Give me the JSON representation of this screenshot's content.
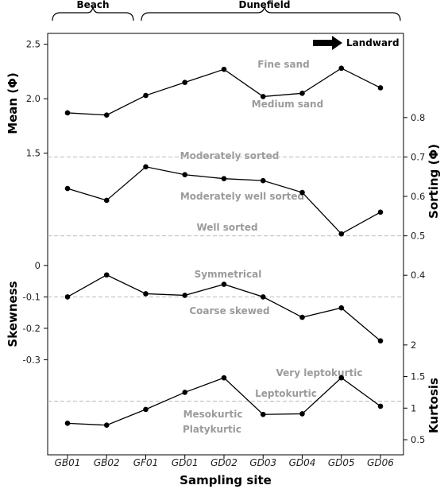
{
  "chart_data": {
    "type": "line",
    "categories": [
      "GB01",
      "GB02",
      "GF01",
      "GD01",
      "GD02",
      "GD03",
      "GD04",
      "GD05",
      "GD06"
    ],
    "xlabel": "Sampling site",
    "top_brackets": [
      {
        "label": "Beach",
        "from": "GB01",
        "to": "GB02"
      },
      {
        "label": "Dunefield",
        "from": "GF01",
        "to": "GD06"
      }
    ],
    "direction_label": "Landward",
    "panels": [
      {
        "id": "mean",
        "ylabel": "Mean (Φ)",
        "axis_side": "left",
        "ylim": [
          1.3,
          2.6
        ],
        "ticks": [
          {
            "v": 1.5,
            "label": "1.5"
          },
          {
            "v": 2.0,
            "label": "2.0"
          },
          {
            "v": 2.5,
            "label": "2.5"
          }
        ],
        "values": [
          1.87,
          1.85,
          2.03,
          2.15,
          2.27,
          2.02,
          2.05,
          2.28,
          2.1
        ],
        "reference_lines": [],
        "zone_labels": [
          {
            "text": "Fine sand"
          },
          {
            "text": "Medium sand"
          }
        ]
      },
      {
        "id": "sorting",
        "ylabel": "Sorting (Φ)",
        "axis_side": "right",
        "ylim": [
          0.35,
          0.85
        ],
        "ticks": [
          {
            "v": 0.4,
            "label": "0.4"
          },
          {
            "v": 0.5,
            "label": "0.5"
          },
          {
            "v": 0.6,
            "label": "0.6"
          },
          {
            "v": 0.7,
            "label": "0.7"
          },
          {
            "v": 0.8,
            "label": "0.8"
          }
        ],
        "values": [
          0.62,
          0.59,
          0.675,
          0.655,
          0.645,
          0.64,
          0.61,
          0.505,
          0.56
        ],
        "reference_lines": [
          0.7,
          0.5
        ],
        "zone_labels": [
          {
            "text": "Moderately sorted"
          },
          {
            "text": "Moderately well sorted"
          },
          {
            "text": "Well sorted"
          }
        ]
      },
      {
        "id": "skewness",
        "ylabel": "Skewness",
        "axis_side": "left",
        "ylim": [
          -0.38,
          0.02
        ],
        "ticks": [
          {
            "v": 0,
            "label": "0"
          },
          {
            "v": -0.1,
            "label": "-0.1"
          },
          {
            "v": -0.2,
            "label": "-0.2"
          },
          {
            "v": -0.3,
            "label": "-0.3"
          }
        ],
        "values": [
          -0.1,
          -0.03,
          -0.09,
          -0.095,
          -0.06,
          -0.1,
          -0.165,
          -0.135,
          -0.24
        ],
        "reference_lines": [
          -0.1
        ],
        "zone_labels": [
          {
            "text": "Symmetrical"
          },
          {
            "text": "Coarse skewed"
          }
        ]
      },
      {
        "id": "kurtosis",
        "ylabel": "Kurtosis",
        "axis_side": "right",
        "ylim": [
          0.5,
          2.3
        ],
        "ticks": [
          {
            "v": 0.5,
            "label": "0.5"
          },
          {
            "v": 1,
            "label": "1"
          },
          {
            "v": 1.5,
            "label": "1.5"
          },
          {
            "v": 2,
            "label": "2"
          }
        ],
        "values": [
          0.76,
          0.73,
          0.98,
          1.25,
          1.48,
          0.9,
          0.91,
          1.48,
          1.03
        ],
        "reference_lines": [
          1.11
        ],
        "zone_labels": [
          {
            "text": "Very leptokurtic"
          },
          {
            "text": "Leptokurtic"
          },
          {
            "text": "Mesokurtic"
          },
          {
            "text": "Platykurtic"
          }
        ]
      }
    ],
    "grid": false,
    "colors": {
      "line": "#000000",
      "reference": "#bbbbbb",
      "zone_text": "#9b9b9b"
    }
  }
}
